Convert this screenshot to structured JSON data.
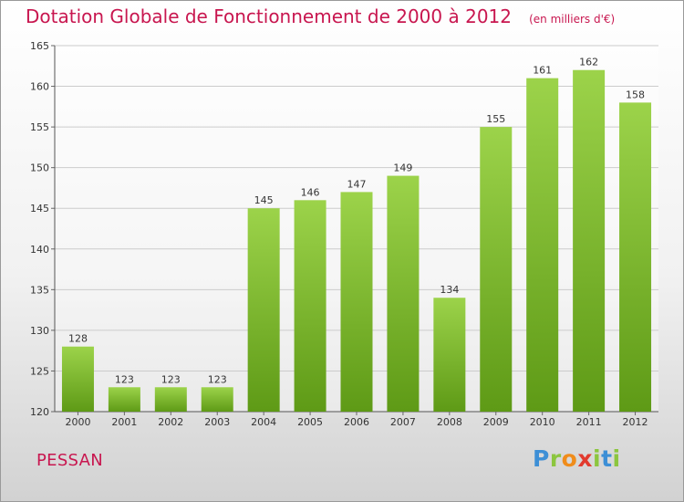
{
  "title": "Dotation Globale de Fonctionnement de 2000 à 2012",
  "unit": "(en milliers d'€)",
  "commune": "PESSAN",
  "brand": {
    "letters": [
      "P",
      "r",
      "o",
      "x",
      "i",
      "t",
      "i"
    ],
    "colors": [
      "#3d8fd6",
      "#8cc63f",
      "#f08c1a",
      "#e23a2e",
      "#8cc63f",
      "#3d8fd6",
      "#8cc63f"
    ]
  },
  "colors": {
    "title": "#c8164f",
    "bar_top": "#9cd34a",
    "bar_bottom": "#5e9a16",
    "grid": "#cccccc"
  },
  "chart_data": {
    "type": "bar",
    "title": "Dotation Globale de Fonctionnement de 2000 à 2012",
    "subtitle": "(en milliers d'€)",
    "xlabel": "",
    "ylabel": "",
    "categories": [
      "2000",
      "2001",
      "2002",
      "2003",
      "2004",
      "2005",
      "2006",
      "2007",
      "2008",
      "2009",
      "2010",
      "2011",
      "2012"
    ],
    "values": [
      128,
      123,
      123,
      123,
      145,
      146,
      147,
      149,
      134,
      155,
      161,
      162,
      158
    ],
    "ylim": [
      120,
      165
    ],
    "yticks": [
      120,
      125,
      130,
      135,
      140,
      145,
      150,
      155,
      160,
      165
    ],
    "grid": true,
    "data_labels": true
  }
}
